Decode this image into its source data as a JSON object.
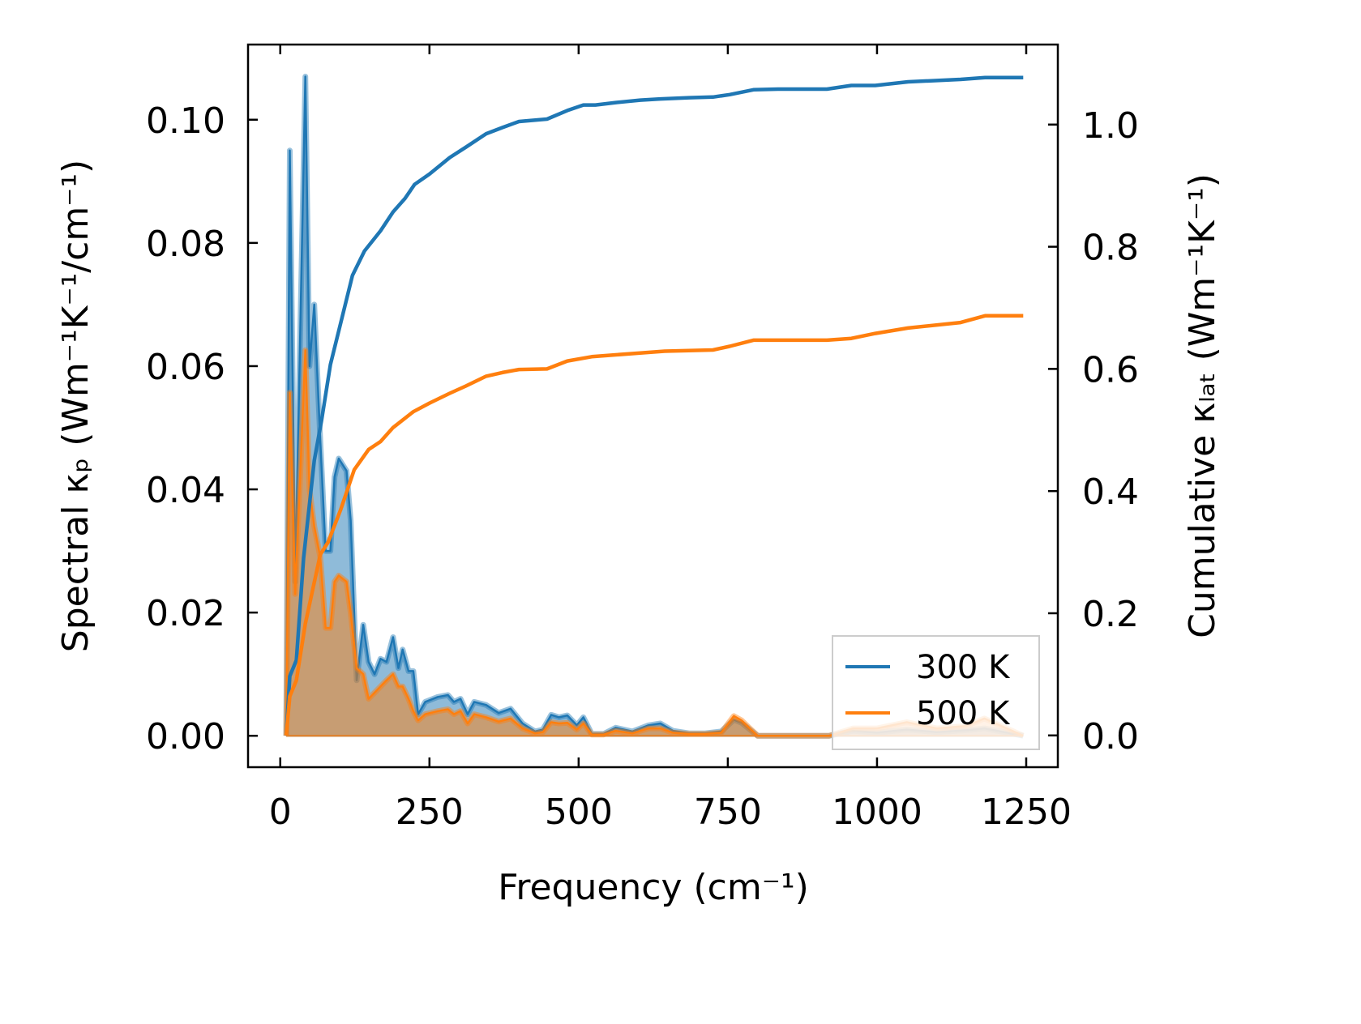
{
  "chart_data": {
    "type": "line",
    "title": "",
    "xlabel": "Frequency (cm⁻¹)",
    "ylabel": "Spectral κₚ (Wm⁻¹K⁻¹/cm⁻¹)",
    "y2label": "Cumulative κₗₐₜ (Wm⁻¹K⁻¹)",
    "xlim": [
      -54,
      1303
    ],
    "ylim": [
      -0.0051,
      0.1122
    ],
    "y2lim": [
      -0.052,
      1.131
    ],
    "xticks": [
      0,
      250,
      500,
      750,
      1000,
      1250
    ],
    "xtick_labels": [
      "0",
      "250",
      "500",
      "750",
      "1000",
      "1250"
    ],
    "yticks": [
      0,
      0.02,
      0.04,
      0.06,
      0.08,
      0.1
    ],
    "ytick_labels": [
      "0.00",
      "0.02",
      "0.04",
      "0.06",
      "0.08",
      "0.10"
    ],
    "y2ticks": [
      0,
      0.2,
      0.4,
      0.6,
      0.8,
      1.0
    ],
    "y2tick_labels": [
      "0.0",
      "0.2",
      "0.4",
      "0.6",
      "0.8",
      "1.0"
    ],
    "grid": false,
    "legend": {
      "placement": "lower-right",
      "entries": [
        "300 K",
        "500 K"
      ]
    },
    "colors": {
      "300 K": "#1f77b4",
      "500 K": "#ff7f0e"
    },
    "spectral": {
      "axis": "left",
      "x": [
        10,
        16,
        25,
        42,
        49,
        57,
        67,
        76,
        84,
        91,
        98,
        111,
        118,
        128,
        139,
        148,
        158,
        168,
        178,
        189,
        198,
        205,
        215,
        223,
        231,
        243,
        264,
        281,
        291,
        302,
        314,
        325,
        345,
        366,
        386,
        406,
        427,
        440,
        454,
        467,
        481,
        497,
        508,
        522,
        542,
        562,
        590,
        617,
        637,
        658,
        685,
        712,
        739,
        760,
        773,
        787,
        800,
        830,
        920,
        960,
        1000,
        1050,
        1100,
        1150,
        1180,
        1245
      ],
      "series": [
        {
          "name": "300 K",
          "values": [
            0,
            0.095,
            0.025,
            0.107,
            0.06,
            0.07,
            0.048,
            0.03,
            0.03,
            0.042,
            0.045,
            0.043,
            0.035,
            0.009,
            0.018,
            0.012,
            0.01,
            0.0125,
            0.012,
            0.016,
            0.011,
            0.014,
            0.0105,
            0.0105,
            0.0035,
            0.0055,
            0.0063,
            0.0066,
            0.0055,
            0.006,
            0.0035,
            0.0055,
            0.005,
            0.0037,
            0.0044,
            0.002,
            0.0007,
            0.001,
            0.0034,
            0.003,
            0.0033,
            0.0017,
            0.003,
            0.0003,
            0.0003,
            0.0013,
            0.0007,
            0.0017,
            0.002,
            0.0008,
            0.0004,
            0.0004,
            0.0007,
            0.0026,
            0.0021,
            0.001,
            0,
            0,
            0,
            0.0008,
            0.0005,
            0.001,
            0.0006,
            0.0009,
            0.0012,
            0
          ]
        },
        {
          "name": "500 K",
          "values": [
            0,
            0.0557,
            0.023,
            0.0626,
            0.04,
            0.034,
            0.029,
            0.0175,
            0.0175,
            0.025,
            0.026,
            0.025,
            0.02,
            0.011,
            0.01,
            0.006,
            0.007,
            0.008,
            0.009,
            0.01,
            0.008,
            0.008,
            0.006,
            0.004,
            0.0025,
            0.0035,
            0.004,
            0.0043,
            0.0035,
            0.004,
            0.002,
            0.0035,
            0.003,
            0.0023,
            0.0028,
            0.0012,
            0.0004,
            0.0006,
            0.0022,
            0.002,
            0.0021,
            0.001,
            0.002,
            0.0002,
            0.0002,
            0.0008,
            0.0004,
            0.0012,
            0.0012,
            0.0005,
            0.0003,
            0.0003,
            0.0005,
            0.0032,
            0.0025,
            0.0012,
            0,
            0,
            0,
            0.0012,
            0.0012,
            0.0022,
            0.0012,
            0.0016,
            0.0028,
            0
          ]
        }
      ]
    },
    "cumulative": {
      "axis": "right",
      "series": [
        {
          "name": "300 K",
          "x": [
            10,
            16,
            27,
            39,
            57,
            69,
            84,
            101,
            121,
            141,
            168,
            189,
            209,
            225,
            250,
            284,
            311,
            345,
            372,
            400,
            447,
            481,
            508,
            528,
            562,
            603,
            637,
            685,
            725,
            753,
            793,
            834,
            916,
            957,
            997,
            1052,
            1140,
            1181,
            1245
          ],
          "values": [
            0,
            0.097,
            0.123,
            0.29,
            0.45,
            0.515,
            0.607,
            0.674,
            0.753,
            0.793,
            0.826,
            0.857,
            0.879,
            0.902,
            0.919,
            0.946,
            0.963,
            0.985,
            0.995,
            1.005,
            1.009,
            1.023,
            1.032,
            1.032,
            1.036,
            1.04,
            1.042,
            1.044,
            1.045,
            1.049,
            1.057,
            1.058,
            1.058,
            1.064,
            1.064,
            1.07,
            1.074,
            1.077,
            1.077
          ]
        },
        {
          "name": "500 K",
          "x": [
            10,
            16,
            27,
            42,
            67,
            80,
            101,
            124,
            148,
            168,
            189,
            223,
            250,
            284,
            311,
            345,
            372,
            400,
            447,
            481,
            522,
            562,
            603,
            644,
            725,
            753,
            793,
            916,
            957,
            997,
            1052,
            1140,
            1181,
            1245
          ],
          "values": [
            0,
            0.064,
            0.09,
            0.183,
            0.296,
            0.316,
            0.369,
            0.435,
            0.468,
            0.481,
            0.504,
            0.53,
            0.544,
            0.56,
            0.572,
            0.588,
            0.594,
            0.599,
            0.6,
            0.613,
            0.62,
            0.623,
            0.626,
            0.629,
            0.631,
            0.637,
            0.647,
            0.647,
            0.65,
            0.658,
            0.667,
            0.676,
            0.687,
            0.687
          ]
        }
      ]
    }
  }
}
